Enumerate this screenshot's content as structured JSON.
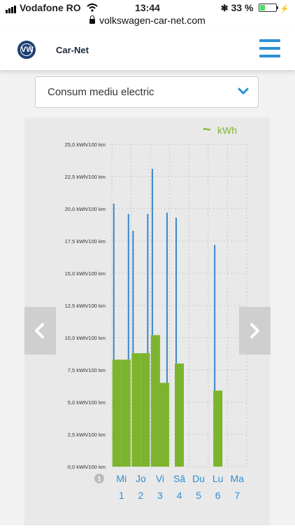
{
  "status_bar": {
    "carrier": "Vodafone RO",
    "time": "13:44",
    "battery": "33 %",
    "battery_level": 0.33
  },
  "browser": {
    "url": "volkswagen-car-net.com"
  },
  "header": {
    "brand": "Car-Net",
    "logo_text": "VW"
  },
  "select": {
    "value": "Consum mediu electric"
  },
  "legend": {
    "symbol": "~",
    "label": "kWh"
  },
  "colors": {
    "bar": "#7db42f",
    "line": "#3b86c8",
    "accent": "#2d8fd5"
  },
  "info_badge": "1",
  "chart_data": {
    "type": "bar",
    "ylim": [
      0,
      25
    ],
    "y_ticks": [
      "0,0 kWh/100 km",
      "2,5 kWh/100 km",
      "5,0 kWh/100 km",
      "7,5 kWh/100 km",
      "10,0 kWh/100 km",
      "12,5 kWh/100 km",
      "15,0 kWh/100 km",
      "17,5 kWh/100 km",
      "20,0 kWh/100 km",
      "22,5 kWh/100 km",
      "25,0 kWh/100 km"
    ],
    "y_tick_values": [
      0,
      2.5,
      5,
      7.5,
      10,
      12.5,
      15,
      17.5,
      20,
      22.5,
      25
    ],
    "days": [
      {
        "name": "Mi",
        "date": "1",
        "trips": [
          {
            "bar": 8.3,
            "line": 20.4
          },
          {
            "bar": 8.3,
            "line": 19.6
          }
        ]
      },
      {
        "name": "Jo",
        "date": "2",
        "trips": [
          {
            "bar": 8.8,
            "line": 18.3
          },
          {
            "bar": 8.8,
            "line": 19.6
          }
        ]
      },
      {
        "name": "Vi",
        "date": "3",
        "trips": [
          {
            "bar": 10.2,
            "line": 23.1
          },
          {
            "bar": 6.5,
            "line": 19.7
          }
        ]
      },
      {
        "name": "Sâ",
        "date": "4",
        "trips": [
          {
            "bar": 8.0,
            "line": 19.3
          }
        ]
      },
      {
        "name": "Du",
        "date": "5",
        "trips": []
      },
      {
        "name": "Lu",
        "date": "6",
        "trips": [
          {
            "bar": 5.9,
            "line": 17.2
          }
        ]
      },
      {
        "name": "Ma",
        "date": "7",
        "trips": []
      }
    ]
  }
}
